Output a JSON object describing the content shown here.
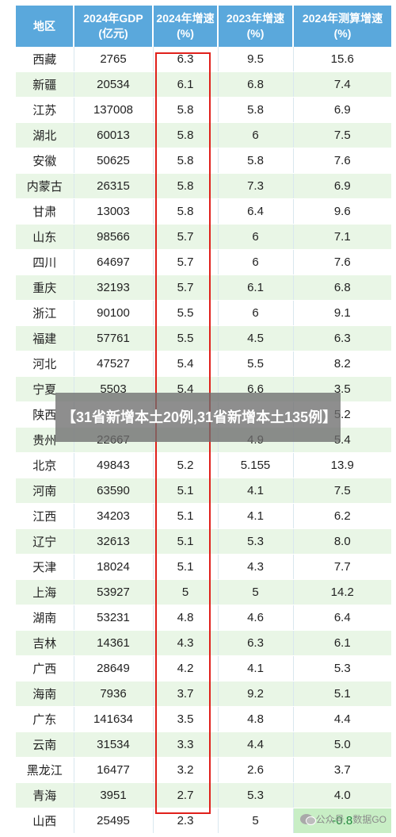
{
  "table": {
    "headers": [
      {
        "line1": "地区",
        "line2": ""
      },
      {
        "line1": "2024年GDP",
        "line2": "(亿元)"
      },
      {
        "line1": "2024年增速",
        "line2": "(%)"
      },
      {
        "line1": "2023年增速",
        "line2": "(%)"
      },
      {
        "line1": "2024年测算增速",
        "line2": "(%)"
      }
    ],
    "rows": [
      [
        "西藏",
        "2765",
        "6.3",
        "9.5",
        "15.6"
      ],
      [
        "新疆",
        "20534",
        "6.1",
        "6.8",
        "7.4"
      ],
      [
        "江苏",
        "137008",
        "5.8",
        "5.8",
        "6.9"
      ],
      [
        "湖北",
        "60013",
        "5.8",
        "6",
        "7.5"
      ],
      [
        "安徽",
        "50625",
        "5.8",
        "5.8",
        "7.6"
      ],
      [
        "内蒙古",
        "26315",
        "5.8",
        "7.3",
        "6.9"
      ],
      [
        "甘肃",
        "13003",
        "5.8",
        "6.4",
        "9.6"
      ],
      [
        "山东",
        "98566",
        "5.7",
        "6",
        "7.1"
      ],
      [
        "四川",
        "64697",
        "5.7",
        "6",
        "7.6"
      ],
      [
        "重庆",
        "32193",
        "5.7",
        "6.1",
        "6.8"
      ],
      [
        "浙江",
        "90100",
        "5.5",
        "6",
        "9.1"
      ],
      [
        "福建",
        "57761",
        "5.5",
        "4.5",
        "6.3"
      ],
      [
        "河北",
        "47527",
        "5.4",
        "5.5",
        "8.2"
      ],
      [
        "宁夏",
        "5503",
        "5.4",
        "6.6",
        "3.5"
      ],
      [
        "陕西",
        "",
        "",
        "",
        "5.2"
      ],
      [
        "贵州",
        "22667",
        "",
        "4.9",
        "5.4"
      ],
      [
        "北京",
        "49843",
        "5.2",
        "5.155",
        "13.9"
      ],
      [
        "河南",
        "63590",
        "5.1",
        "4.1",
        "7.5"
      ],
      [
        "江西",
        "34203",
        "5.1",
        "4.1",
        "6.2"
      ],
      [
        "辽宁",
        "32613",
        "5.1",
        "5.3",
        "8.0"
      ],
      [
        "天津",
        "18024",
        "5.1",
        "4.3",
        "7.7"
      ],
      [
        "上海",
        "53927",
        "5",
        "5",
        "14.2"
      ],
      [
        "湖南",
        "53231",
        "4.8",
        "4.6",
        "6.4"
      ],
      [
        "吉林",
        "14361",
        "4.3",
        "6.3",
        "6.1"
      ],
      [
        "广西",
        "28649",
        "4.2",
        "4.1",
        "5.3"
      ],
      [
        "海南",
        "7936",
        "3.7",
        "9.2",
        "5.1"
      ],
      [
        "广东",
        "141634",
        "3.5",
        "4.8",
        "4.4"
      ],
      [
        "云南",
        "31534",
        "3.3",
        "4.4",
        "5.0"
      ],
      [
        "黑龙江",
        "16477",
        "3.2",
        "2.6",
        "3.7"
      ],
      [
        "青海",
        "3951",
        "2.7",
        "5.3",
        "4.0"
      ],
      [
        "山西",
        "25495",
        "2.3",
        "5",
        "-0.8"
      ]
    ]
  },
  "banner_text": "【31省新增本土20例,31省新增本土135例】",
  "watermark_text": "公众号 · 数据GO",
  "colors": {
    "header": "#5aa8dc",
    "stripe": "#e9f6e6",
    "highlight_box": "#e0201b",
    "negative_cell": "#c8eec5"
  }
}
